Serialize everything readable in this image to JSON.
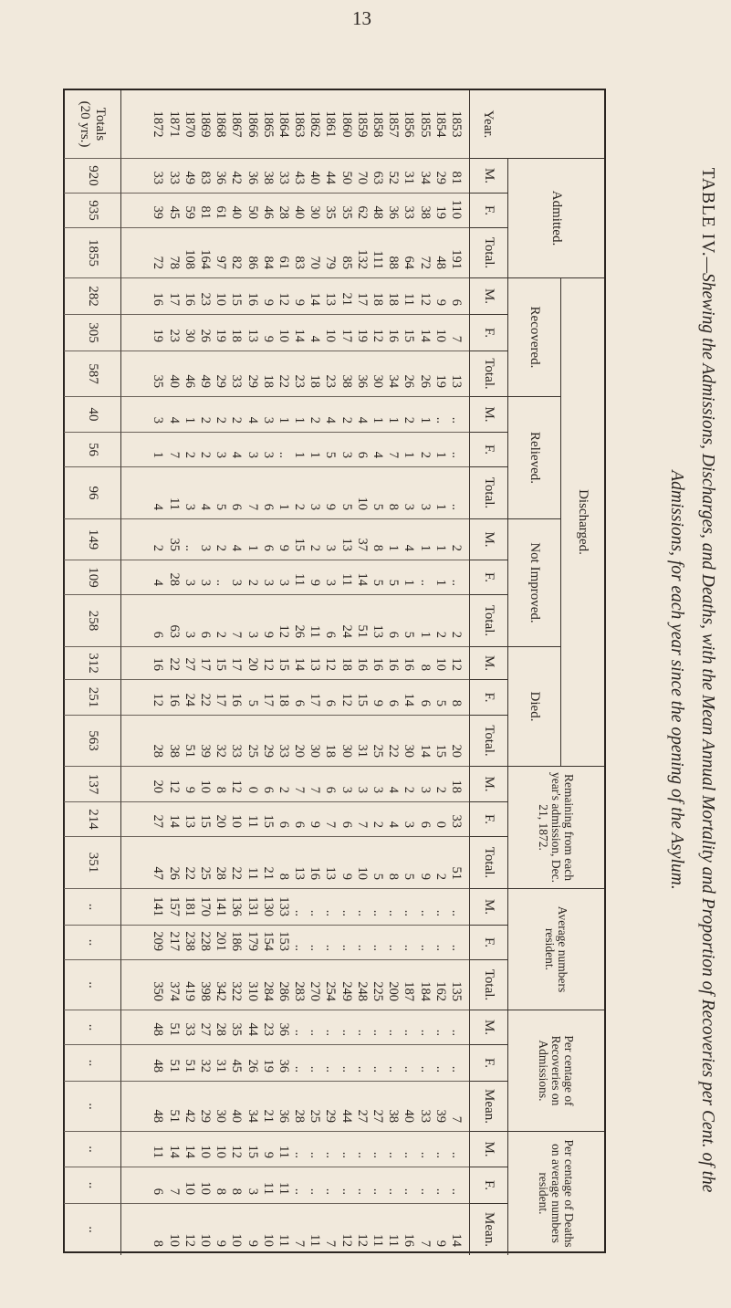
{
  "page_number": "13",
  "title": {
    "line1_caps": "TABLE IV.",
    "line1_rest": "—Shewing the Admissions, Discharges, and Deaths, with the Mean Annual Mortality and Proportion of Recoveries per Cent. of the",
    "line2": "Admissions, for each year since the opening of the Asylum."
  },
  "header": {
    "year": "Year.",
    "admitted": "Admitted.",
    "discharged": "Discharged.",
    "recovered": "Recovered.",
    "relieved": "Relieved.",
    "not_improved": "Not Improved.",
    "died": "Died.",
    "remaining": "Remaining from each year's admission, Dec. 21, 1872.",
    "average": "Average numbers resident.",
    "pct_recoveries": "Per centage of Recoveries on Admissions.",
    "pct_deaths": "Per centage of Deaths on average numbers resident.",
    "sub": [
      "M.",
      "F.",
      "Total.",
      "M.",
      "F.",
      "Total.",
      "M.",
      "F.",
      "Total.",
      "M.",
      "F.",
      "Total.",
      "M.",
      "F.",
      "Total.",
      "M.",
      "F.",
      "Total.",
      "M.",
      "F.",
      "Total.",
      "M.",
      "F.",
      "Mean.",
      "M.",
      "F.",
      "Mean."
    ]
  },
  "rows": [
    {
      "year": "1853",
      "cells": [
        "81",
        "110",
        "191",
        "6",
        "7",
        "13",
        "..",
        "..",
        "..",
        "2",
        "..",
        "2",
        "12",
        "8",
        "20",
        "18",
        "33",
        "51",
        "..",
        "..",
        "135",
        "..",
        "..",
        "7",
        "..",
        "..",
        "14"
      ]
    },
    {
      "year": "1854",
      "cells": [
        "29",
        "19",
        "48",
        "9",
        "10",
        "19",
        "..",
        "1",
        "1",
        "1",
        "1",
        "2",
        "10",
        "5",
        "15",
        "2",
        "0",
        "2",
        "..",
        "..",
        "162",
        "..",
        "..",
        "39",
        "..",
        "..",
        "9"
      ]
    },
    {
      "year": "1855",
      "cells": [
        "34",
        "38",
        "72",
        "12",
        "14",
        "26",
        "1",
        "2",
        "3",
        "1",
        "..",
        "1",
        "8",
        "6",
        "14",
        "3",
        "6",
        "9",
        "..",
        "..",
        "184",
        "..",
        "..",
        "33",
        "..",
        "..",
        "7"
      ]
    },
    {
      "year": "1856",
      "cells": [
        "31",
        "33",
        "64",
        "11",
        "15",
        "26",
        "2",
        "1",
        "3",
        "4",
        "1",
        "5",
        "16",
        "14",
        "30",
        "2",
        "3",
        "5",
        "..",
        "..",
        "187",
        "..",
        "..",
        "40",
        "..",
        "..",
        "16"
      ]
    },
    {
      "year": "1857",
      "cells": [
        "52",
        "36",
        "88",
        "18",
        "16",
        "34",
        "1",
        "7",
        "8",
        "1",
        "5",
        "6",
        "16",
        "6",
        "22",
        "4",
        "4",
        "8",
        "..",
        "..",
        "200",
        "..",
        "..",
        "38",
        "..",
        "..",
        "11"
      ]
    },
    {
      "year": "1858",
      "cells": [
        "63",
        "48",
        "111",
        "18",
        "12",
        "30",
        "1",
        "4",
        "5",
        "8",
        "5",
        "13",
        "16",
        "9",
        "25",
        "3",
        "2",
        "5",
        "..",
        "..",
        "225",
        "..",
        "..",
        "27",
        "..",
        "..",
        "11"
      ]
    },
    {
      "year": "1859",
      "cells": [
        "70",
        "62",
        "132",
        "17",
        "19",
        "36",
        "4",
        "6",
        "10",
        "37",
        "14",
        "51",
        "16",
        "15",
        "31",
        "3",
        "7",
        "10",
        "..",
        "..",
        "248",
        "..",
        "..",
        "27",
        "..",
        "..",
        "12"
      ]
    },
    {
      "year": "1860",
      "cells": [
        "50",
        "35",
        "85",
        "21",
        "17",
        "38",
        "2",
        "3",
        "5",
        "13",
        "11",
        "24",
        "18",
        "12",
        "30",
        "3",
        "6",
        "9",
        "..",
        "..",
        "249",
        "..",
        "..",
        "44",
        "..",
        "..",
        "12"
      ]
    },
    {
      "year": "1861",
      "cells": [
        "44",
        "35",
        "79",
        "13",
        "10",
        "23",
        "4",
        "5",
        "9",
        "3",
        "3",
        "6",
        "12",
        "6",
        "18",
        "6",
        "7",
        "13",
        "..",
        "..",
        "254",
        "..",
        "..",
        "29",
        "..",
        "..",
        "7"
      ]
    },
    {
      "year": "1862",
      "cells": [
        "40",
        "30",
        "70",
        "14",
        "4",
        "18",
        "2",
        "1",
        "3",
        "2",
        "9",
        "11",
        "13",
        "17",
        "30",
        "7",
        "9",
        "16",
        "..",
        "..",
        "270",
        "..",
        "..",
        "25",
        "..",
        "..",
        "11"
      ]
    },
    {
      "year": "1863",
      "cells": [
        "43",
        "40",
        "83",
        "9",
        "14",
        "23",
        "1",
        "1",
        "2",
        "15",
        "11",
        "26",
        "14",
        "6",
        "20",
        "7",
        "6",
        "13",
        "..",
        "..",
        "283",
        "..",
        "..",
        "28",
        "..",
        "..",
        "7"
      ]
    },
    {
      "year": "1864",
      "cells": [
        "33",
        "28",
        "61",
        "12",
        "10",
        "22",
        "1",
        "..",
        "1",
        "9",
        "3",
        "12",
        "15",
        "18",
        "33",
        "2",
        "6",
        "8",
        "133",
        "153",
        "286",
        "36",
        "36",
        "36",
        "11",
        "11",
        "11"
      ]
    },
    {
      "year": "1865",
      "cells": [
        "38",
        "46",
        "84",
        "9",
        "9",
        "18",
        "3",
        "3",
        "6",
        "6",
        "3",
        "9",
        "12",
        "17",
        "29",
        "6",
        "15",
        "21",
        "130",
        "154",
        "284",
        "23",
        "19",
        "21",
        "9",
        "11",
        "10"
      ]
    },
    {
      "year": "1866",
      "cells": [
        "36",
        "50",
        "86",
        "16",
        "13",
        "29",
        "4",
        "3",
        "7",
        "1",
        "2",
        "3",
        "20",
        "5",
        "25",
        "0",
        "11",
        "11",
        "131",
        "179",
        "310",
        "44",
        "26",
        "34",
        "15",
        "3",
        "9"
      ]
    },
    {
      "year": "1867",
      "cells": [
        "42",
        "40",
        "82",
        "15",
        "18",
        "33",
        "2",
        "4",
        "6",
        "4",
        "3",
        "7",
        "17",
        "16",
        "33",
        "12",
        "10",
        "22",
        "136",
        "186",
        "322",
        "35",
        "45",
        "40",
        "12",
        "8",
        "10"
      ]
    },
    {
      "year": "1868",
      "cells": [
        "36",
        "61",
        "97",
        "10",
        "19",
        "29",
        "2",
        "3",
        "5",
        "2",
        "..",
        "2",
        "15",
        "17",
        "32",
        "8",
        "20",
        "28",
        "141",
        "201",
        "342",
        "28",
        "31",
        "30",
        "10",
        "8",
        "9"
      ]
    },
    {
      "year": "1869",
      "cells": [
        "83",
        "81",
        "164",
        "23",
        "26",
        "49",
        "2",
        "2",
        "4",
        "3",
        "3",
        "6",
        "17",
        "22",
        "39",
        "10",
        "15",
        "25",
        "170",
        "228",
        "398",
        "27",
        "32",
        "29",
        "10",
        "10",
        "10"
      ]
    },
    {
      "year": "1870",
      "cells": [
        "49",
        "59",
        "108",
        "16",
        "30",
        "46",
        "1",
        "2",
        "3",
        "..",
        "3",
        "3",
        "27",
        "24",
        "51",
        "9",
        "13",
        "22",
        "181",
        "238",
        "419",
        "33",
        "51",
        "42",
        "14",
        "10",
        "12"
      ]
    },
    {
      "year": "1871",
      "cells": [
        "33",
        "45",
        "78",
        "17",
        "23",
        "40",
        "4",
        "7",
        "11",
        "35",
        "28",
        "63",
        "22",
        "16",
        "38",
        "12",
        "14",
        "26",
        "157",
        "217",
        "374",
        "51",
        "51",
        "51",
        "14",
        "7",
        "10"
      ]
    },
    {
      "year": "1872",
      "cells": [
        "33",
        "39",
        "72",
        "16",
        "19",
        "35",
        "3",
        "1",
        "4",
        "2",
        "4",
        "6",
        "16",
        "12",
        "28",
        "20",
        "27",
        "47",
        "141",
        "209",
        "350",
        "48",
        "48",
        "48",
        "11",
        "6",
        "8"
      ]
    }
  ],
  "totals": {
    "label_line1": "Totals",
    "label_line2": "(20 yrs.)",
    "cells": [
      "920",
      "935",
      "1855",
      "282",
      "305",
      "587",
      "40",
      "56",
      "96",
      "149",
      "109",
      "258",
      "312",
      "251",
      "563",
      "137",
      "214",
      "351",
      "..",
      "..",
      "..",
      "..",
      "..",
      "..",
      "..",
      "..",
      ".."
    ]
  }
}
